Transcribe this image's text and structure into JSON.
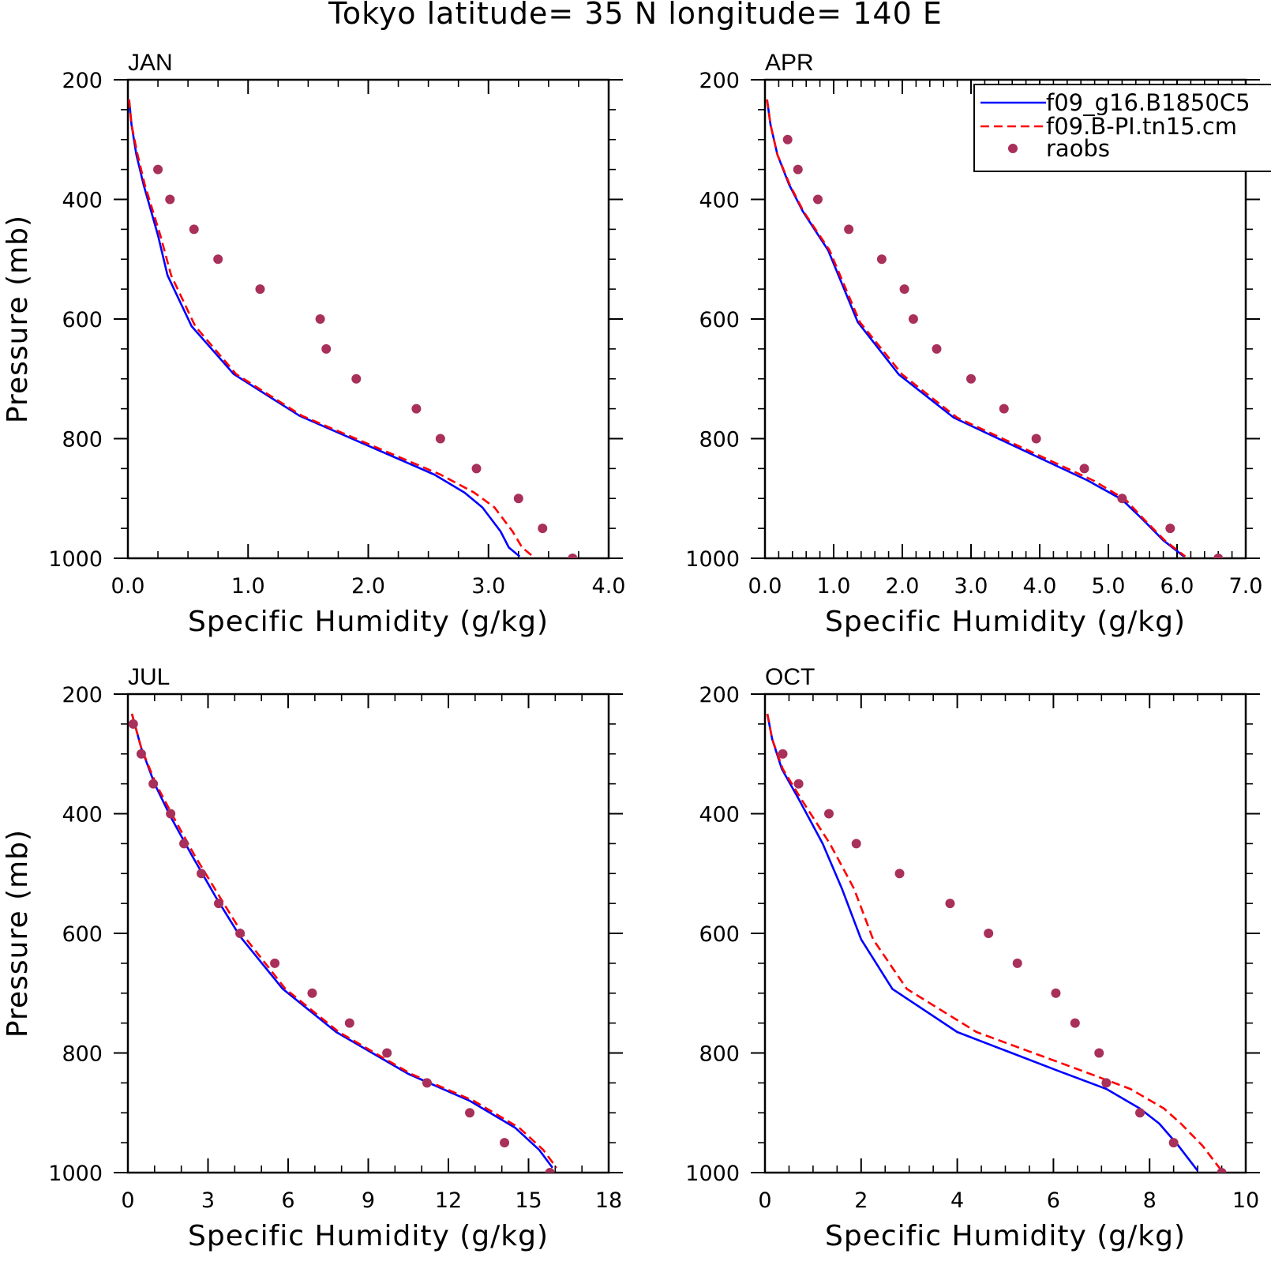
{
  "title": "Tokyo  latitude= 35 N longitude= 140 E",
  "colors": {
    "model1": "#0000ff",
    "model2": "#ff0000",
    "raobs": "#a8305a"
  },
  "legend": [
    {
      "label": "f09_g16.B1850C5",
      "style": "solid-line",
      "color": "#0000ff"
    },
    {
      "label": "f09.B-PI.tn15.cm",
      "style": "dashed-line",
      "color": "#ff0000"
    },
    {
      "label": "raobs",
      "style": "marker",
      "color": "#a8305a"
    }
  ],
  "chart_data": [
    {
      "type": "line",
      "panel_label": "JAN",
      "xlabel": "Specific Humidity (g/kg)",
      "ylabel": "Pressure (mb)",
      "xlim": [
        0,
        4
      ],
      "ylim": [
        200,
        1000
      ],
      "y_inverted": true,
      "xticks": [
        "0.0",
        "1.0",
        "2.0",
        "3.0",
        "4.0"
      ],
      "yticks": [
        "200",
        "400",
        "600",
        "800",
        "1000"
      ],
      "legend_shown": false,
      "series": [
        {
          "name": "f09_g16.B1850C5",
          "style": "solid",
          "x": [
            0.01,
            0.03,
            0.07,
            0.13,
            0.25,
            0.33,
            0.53,
            0.88,
            1.43,
            2.55,
            2.8,
            2.95,
            3.1,
            3.17,
            3.26
          ],
          "y": [
            233,
            275,
            325,
            375,
            460,
            527,
            612,
            692,
            762,
            860,
            890,
            915,
            955,
            982,
            997
          ]
        },
        {
          "name": "f09.B-PI.tn15.cm",
          "style": "dashed",
          "x": [
            0.01,
            0.03,
            0.08,
            0.14,
            0.27,
            0.36,
            0.56,
            0.9,
            1.45,
            2.6,
            2.88,
            3.05,
            3.2,
            3.28,
            3.37
          ],
          "y": [
            233,
            275,
            325,
            375,
            460,
            527,
            612,
            692,
            762,
            860,
            890,
            915,
            955,
            982,
            997
          ]
        },
        {
          "name": "raobs",
          "style": "markers",
          "x": [
            0.25,
            0.35,
            0.55,
            0.75,
            1.1,
            1.6,
            1.65,
            1.9,
            2.4,
            2.6,
            2.9,
            3.25,
            3.45,
            3.7
          ],
          "y": [
            350,
            400,
            450,
            500,
            550,
            600,
            650,
            700,
            750,
            800,
            850,
            900,
            950,
            1000
          ]
        }
      ]
    },
    {
      "type": "line",
      "panel_label": "APR",
      "xlabel": "Specific Humidity (g/kg)",
      "ylabel": "",
      "xlim": [
        0,
        7
      ],
      "ylim": [
        200,
        1000
      ],
      "y_inverted": true,
      "xticks": [
        "0.0",
        "1.0",
        "2.0",
        "3.0",
        "4.0",
        "5.0",
        "6.0",
        "7.0"
      ],
      "yticks": [
        "200",
        "400",
        "600",
        "800",
        "1000"
      ],
      "legend_shown": true,
      "legend_position": "top-right",
      "series": [
        {
          "name": "f09_g16.B1850C5",
          "style": "solid",
          "x": [
            0.03,
            0.08,
            0.18,
            0.35,
            0.55,
            0.92,
            1.35,
            1.95,
            2.75,
            4.05,
            4.7,
            5.2,
            5.5,
            5.8,
            6.1
          ],
          "y": [
            233,
            275,
            325,
            375,
            420,
            485,
            605,
            693,
            765,
            835,
            870,
            902,
            935,
            970,
            997
          ]
        },
        {
          "name": "f09.B-PI.tn15.cm",
          "style": "dashed",
          "x": [
            0.03,
            0.08,
            0.18,
            0.36,
            0.56,
            0.94,
            1.38,
            2.0,
            2.8,
            4.12,
            4.78,
            5.25,
            5.52,
            5.82,
            6.12
          ],
          "y": [
            233,
            275,
            325,
            375,
            420,
            485,
            605,
            693,
            765,
            835,
            870,
            902,
            935,
            970,
            997
          ]
        },
        {
          "name": "raobs",
          "style": "markers",
          "x": [
            0.33,
            0.48,
            0.77,
            1.22,
            1.7,
            2.03,
            2.16,
            2.5,
            3.0,
            3.48,
            3.95,
            4.65,
            5.2,
            5.9,
            6.6
          ],
          "y": [
            300,
            350,
            400,
            450,
            500,
            550,
            600,
            650,
            700,
            750,
            800,
            850,
            900,
            950,
            1000
          ]
        }
      ]
    },
    {
      "type": "line",
      "panel_label": "JUL",
      "xlabel": "Specific Humidity (g/kg)",
      "ylabel": "Pressure (mb)",
      "xlim": [
        0,
        18
      ],
      "ylim": [
        200,
        1000
      ],
      "y_inverted": true,
      "xticks": [
        "0",
        "3",
        "6",
        "9",
        "12",
        "15",
        "18"
      ],
      "yticks": [
        "200",
        "400",
        "600",
        "800",
        "1000"
      ],
      "legend_shown": false,
      "series": [
        {
          "name": "f09_g16.B1850C5",
          "style": "solid",
          "x": [
            0.15,
            0.5,
            1.0,
            1.6,
            2.4,
            3.3,
            4.2,
            5.8,
            7.8,
            10.5,
            12.8,
            14.5,
            15.4,
            15.9
          ],
          "y": [
            233,
            290,
            350,
            405,
            470,
            540,
            605,
            693,
            765,
            835,
            880,
            925,
            962,
            992
          ]
        },
        {
          "name": "f09.B-PI.tn15.cm",
          "style": "dashed",
          "x": [
            0.15,
            0.5,
            1.05,
            1.7,
            2.5,
            3.45,
            4.35,
            5.9,
            7.9,
            10.6,
            12.95,
            14.65,
            15.55,
            16.05
          ],
          "y": [
            233,
            290,
            350,
            405,
            470,
            540,
            605,
            693,
            765,
            835,
            880,
            925,
            962,
            992
          ]
        },
        {
          "name": "raobs",
          "style": "markers",
          "x": [
            0.2,
            0.5,
            0.95,
            1.6,
            2.1,
            2.75,
            3.4,
            4.2,
            5.5,
            6.9,
            8.3,
            9.7,
            11.2,
            12.8,
            14.1,
            15.8
          ],
          "y": [
            250,
            300,
            350,
            400,
            450,
            500,
            550,
            600,
            650,
            700,
            750,
            800,
            850,
            900,
            950,
            1000
          ]
        }
      ]
    },
    {
      "type": "line",
      "panel_label": "OCT",
      "xlabel": "Specific Humidity (g/kg)",
      "ylabel": "",
      "xlim": [
        0,
        10
      ],
      "ylim": [
        200,
        1000
      ],
      "y_inverted": true,
      "xticks": [
        "0",
        "2",
        "4",
        "6",
        "8",
        "10"
      ],
      "yticks": [
        "200",
        "400",
        "600",
        "800",
        "1000"
      ],
      "legend_shown": false,
      "series": [
        {
          "name": "f09_g16.B1850C5",
          "style": "solid",
          "x": [
            0.05,
            0.15,
            0.35,
            0.7,
            1.2,
            1.6,
            2.0,
            2.65,
            4.0,
            6.1,
            7.1,
            7.8,
            8.2,
            8.6,
            9.0
          ],
          "y": [
            233,
            275,
            325,
            375,
            450,
            525,
            610,
            693,
            765,
            830,
            860,
            893,
            918,
            955,
            997
          ]
        },
        {
          "name": "f09.B-PI.tn15.cm",
          "style": "dashed",
          "x": [
            0.05,
            0.15,
            0.37,
            0.75,
            1.35,
            1.85,
            2.25,
            2.95,
            4.4,
            6.6,
            7.6,
            8.3,
            8.65,
            9.1,
            9.5
          ],
          "y": [
            233,
            275,
            325,
            375,
            450,
            525,
            610,
            693,
            765,
            830,
            860,
            893,
            918,
            955,
            997
          ]
        },
        {
          "name": "raobs",
          "style": "markers",
          "x": [
            0.37,
            0.7,
            1.33,
            1.9,
            2.8,
            3.85,
            4.65,
            5.25,
            6.05,
            6.45,
            6.95,
            7.1,
            7.8,
            8.5,
            9.5
          ],
          "y": [
            300,
            350,
            400,
            450,
            500,
            550,
            600,
            650,
            700,
            750,
            800,
            850,
            900,
            950,
            1000
          ]
        }
      ]
    }
  ]
}
